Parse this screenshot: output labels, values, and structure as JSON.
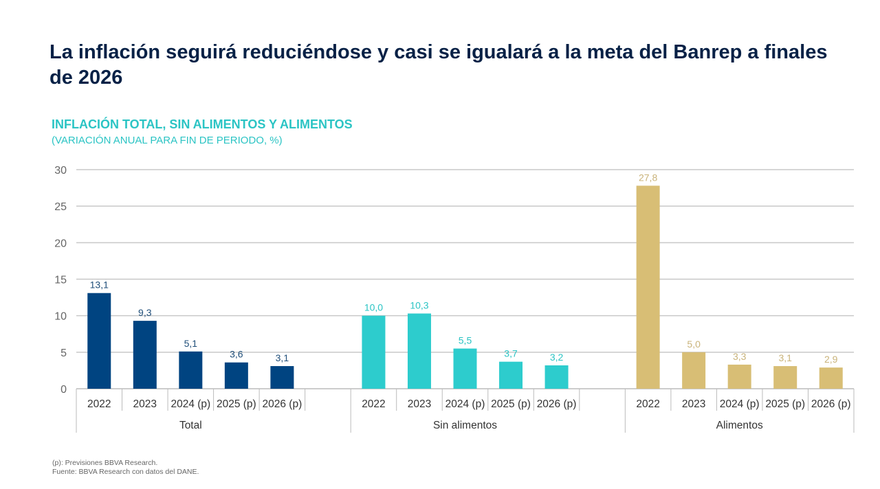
{
  "header": {
    "title": "La inflación seguirá reduciéndose y casi se igualará a la meta del Banrep a finales de 2026"
  },
  "chart_data": {
    "type": "bar",
    "title": "INFLACIÓN TOTAL, SIN ALIMENTOS Y ALIMENTOS",
    "subtitle": "(VARIACIÓN ANUAL PARA FIN DE PERIODO, %)",
    "ylim": [
      0,
      30
    ],
    "yticks": [
      0,
      5,
      10,
      15,
      20,
      25,
      30
    ],
    "grid": true,
    "categories": [
      "2022",
      "2023",
      "2024 (p)",
      "2025 (p)",
      "2026 (p)"
    ],
    "groups": [
      {
        "name": "Total",
        "color": "#004481",
        "label_color": "#1f4e79",
        "values": [
          13.1,
          9.3,
          5.1,
          3.6,
          3.1
        ],
        "labels": [
          "13,1",
          "9,3",
          "5,1",
          "3,6",
          "3,1"
        ]
      },
      {
        "name": "Sin alimentos",
        "color": "#2dcccd",
        "label_color": "#2bc4c4",
        "values": [
          10.0,
          10.3,
          5.5,
          3.7,
          3.2
        ],
        "labels": [
          "10,0",
          "10,3",
          "5,5",
          "3,7",
          "3,2"
        ]
      },
      {
        "name": "Alimentos",
        "color": "#d8be75",
        "label_color": "#c9b37a",
        "values": [
          27.8,
          5.0,
          3.3,
          3.1,
          2.9
        ],
        "labels": [
          "27,8",
          "5,0",
          "3,3",
          "3,1",
          "2,9"
        ]
      }
    ]
  },
  "footer": {
    "note": "(p): Previsiones BBVA Research.",
    "source": "Fuente: BBVA Research con datos del DANE."
  }
}
